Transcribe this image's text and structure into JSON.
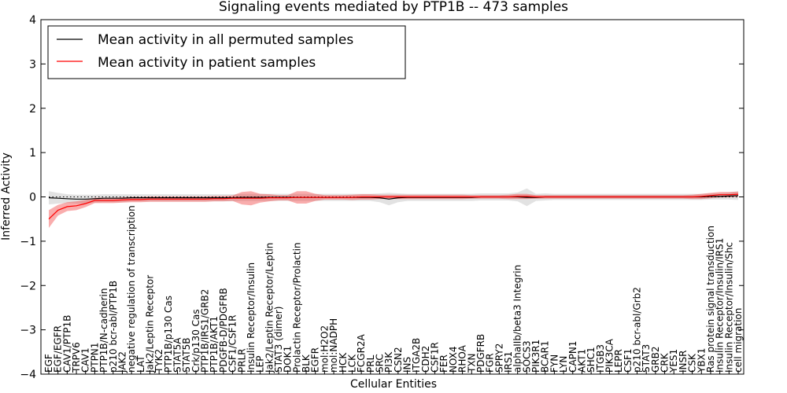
{
  "chart_data": {
    "type": "line",
    "title": "Signaling events mediated by PTP1B -- 473 samples",
    "xlabel": "Cellular Entities",
    "ylabel": "Inferred Activity",
    "ylim": [
      -4,
      4
    ],
    "yticks": [
      -4,
      -3,
      -2,
      -1,
      0,
      1,
      2,
      3,
      4
    ],
    "ytick_labels": [
      "−4",
      "−3",
      "−2",
      "−1",
      "0",
      "1",
      "2",
      "3",
      "4"
    ],
    "grid": false,
    "legend_position": "top-left",
    "categories": [
      "EGF",
      "EGF/EGFR",
      "CAV1/PTP1B",
      "TRPV6",
      "CAV1",
      "PTPN1",
      "PTP1B/N-cadherin",
      "p210 bcr-abl/PTP1B",
      "JAK2",
      "negative regulation of transcription",
      "LAT",
      "Jak2/Leptin Receptor",
      "TYK2",
      "PTP1B/p130 Cas",
      "STAT5A",
      "STAT5B",
      "Crk/p130 Cas",
      "PTP1B/IRS1/GRB2",
      "PTP1B/AKT1",
      "PDGFB-D/PDGFRB",
      "CSF1/CSF1R",
      "PRLR",
      "Insulin Receptor/Insulin",
      "LEP",
      "Jak2/Leptin Receptor/Leptin",
      "STAT3 (dimer)",
      "DOK1",
      "Prolactin Receptor/Prolactin",
      "BLK",
      "EGFR",
      "mol:H2O2",
      "mol:NADPH",
      "HCK",
      "LCK",
      "FCGR2A",
      "PRL",
      "SRC",
      "PI3K",
      "CSN2",
      "INS",
      "ITGA2B",
      "CDH2",
      "CSF1R",
      "FER",
      "NOX4",
      "RHOA",
      "TXN",
      "PDGFRB",
      "FGR",
      "SPRY2",
      "IRS1",
      "alphaIIb/beta3 Integrin",
      "SOCS3",
      "PIK3R1",
      "BCAR1",
      "FYN",
      "LYN",
      "CAPN1",
      "AKT1",
      "SHC1",
      "ITGB3",
      "PIK3CA",
      "LEPR",
      "CSF1",
      "p210 bcr-abl/Grb2",
      "STAT3",
      "GRB2",
      "CRK",
      "YES1",
      "INSR",
      "CSK",
      "YBX1",
      "Ras protein signal transduction",
      "Insulin Receptor/Insulin/IRS1",
      "Insulin Receptor/Insulin/Shc",
      "cell migration"
    ],
    "series": [
      {
        "name": "Mean activity in all permuted samples",
        "color": "#000000",
        "values": [
          -0.02,
          -0.03,
          -0.04,
          -0.05,
          -0.05,
          -0.04,
          -0.03,
          -0.03,
          -0.03,
          -0.02,
          -0.02,
          -0.02,
          -0.02,
          -0.02,
          -0.02,
          -0.02,
          -0.02,
          -0.02,
          -0.02,
          -0.02,
          -0.02,
          -0.01,
          -0.01,
          -0.01,
          -0.01,
          -0.01,
          -0.01,
          -0.01,
          -0.01,
          -0.01,
          -0.01,
          -0.01,
          -0.01,
          -0.01,
          -0.01,
          -0.01,
          -0.02,
          -0.05,
          -0.02,
          -0.01,
          -0.01,
          -0.01,
          -0.01,
          -0.01,
          -0.01,
          -0.01,
          -0.01,
          0.0,
          0.0,
          0.0,
          0.0,
          0.0,
          -0.01,
          -0.01,
          0.0,
          0.0,
          0.0,
          0.0,
          0.0,
          0.0,
          0.0,
          0.0,
          0.0,
          0.0,
          0.0,
          0.0,
          0.0,
          0.0,
          0.0,
          0.0,
          0.0,
          0.0,
          0.01,
          0.01,
          0.02,
          0.03
        ],
        "band": [
          0.15,
          0.12,
          0.1,
          0.1,
          0.1,
          0.09,
          0.09,
          0.09,
          0.09,
          0.08,
          0.08,
          0.08,
          0.08,
          0.08,
          0.08,
          0.08,
          0.08,
          0.08,
          0.08,
          0.08,
          0.08,
          0.08,
          0.08,
          0.08,
          0.08,
          0.08,
          0.08,
          0.08,
          0.08,
          0.08,
          0.08,
          0.08,
          0.08,
          0.08,
          0.08,
          0.08,
          0.1,
          0.14,
          0.1,
          0.08,
          0.08,
          0.08,
          0.08,
          0.08,
          0.08,
          0.08,
          0.08,
          0.08,
          0.08,
          0.08,
          0.08,
          0.1,
          0.2,
          0.08,
          0.08,
          0.07,
          0.07,
          0.07,
          0.07,
          0.07,
          0.07,
          0.07,
          0.07,
          0.07,
          0.07,
          0.07,
          0.07,
          0.07,
          0.07,
          0.07,
          0.07,
          0.07,
          0.07,
          0.07,
          0.08,
          0.1
        ]
      },
      {
        "name": "Mean activity in patient samples",
        "color": "#ff0000",
        "values": [
          -0.5,
          -0.3,
          -0.22,
          -0.2,
          -0.15,
          -0.08,
          -0.08,
          -0.08,
          -0.07,
          -0.06,
          -0.06,
          -0.05,
          -0.05,
          -0.05,
          -0.05,
          -0.05,
          -0.05,
          -0.05,
          -0.04,
          -0.04,
          -0.03,
          -0.03,
          -0.03,
          -0.03,
          -0.02,
          -0.02,
          -0.02,
          -0.01,
          -0.01,
          -0.01,
          -0.01,
          -0.01,
          -0.01,
          -0.01,
          0.0,
          0.0,
          0.0,
          0.0,
          0.0,
          0.0,
          0.0,
          0.0,
          0.0,
          0.0,
          0.0,
          0.0,
          0.0,
          0.0,
          0.0,
          0.0,
          0.0,
          0.01,
          0.01,
          0.0,
          0.0,
          0.0,
          0.0,
          0.0,
          0.0,
          0.0,
          0.0,
          0.0,
          0.0,
          0.0,
          0.0,
          0.0,
          0.0,
          0.0,
          0.0,
          0.0,
          0.0,
          0.01,
          0.03,
          0.05,
          0.05,
          0.06
        ],
        "band": [
          0.2,
          0.12,
          0.1,
          0.1,
          0.08,
          0.06,
          0.06,
          0.06,
          0.06,
          0.06,
          0.06,
          0.06,
          0.06,
          0.06,
          0.06,
          0.06,
          0.06,
          0.06,
          0.06,
          0.06,
          0.06,
          0.14,
          0.16,
          0.1,
          0.08,
          0.06,
          0.06,
          0.14,
          0.14,
          0.08,
          0.05,
          0.05,
          0.05,
          0.06,
          0.06,
          0.06,
          0.05,
          0.05,
          0.05,
          0.05,
          0.05,
          0.05,
          0.05,
          0.05,
          0.05,
          0.05,
          0.04,
          0.04,
          0.04,
          0.04,
          0.05,
          0.06,
          0.06,
          0.04,
          0.04,
          0.04,
          0.04,
          0.04,
          0.04,
          0.04,
          0.04,
          0.04,
          0.04,
          0.04,
          0.04,
          0.04,
          0.04,
          0.04,
          0.04,
          0.04,
          0.05,
          0.06,
          0.06,
          0.06,
          0.06,
          0.06
        ]
      }
    ]
  }
}
